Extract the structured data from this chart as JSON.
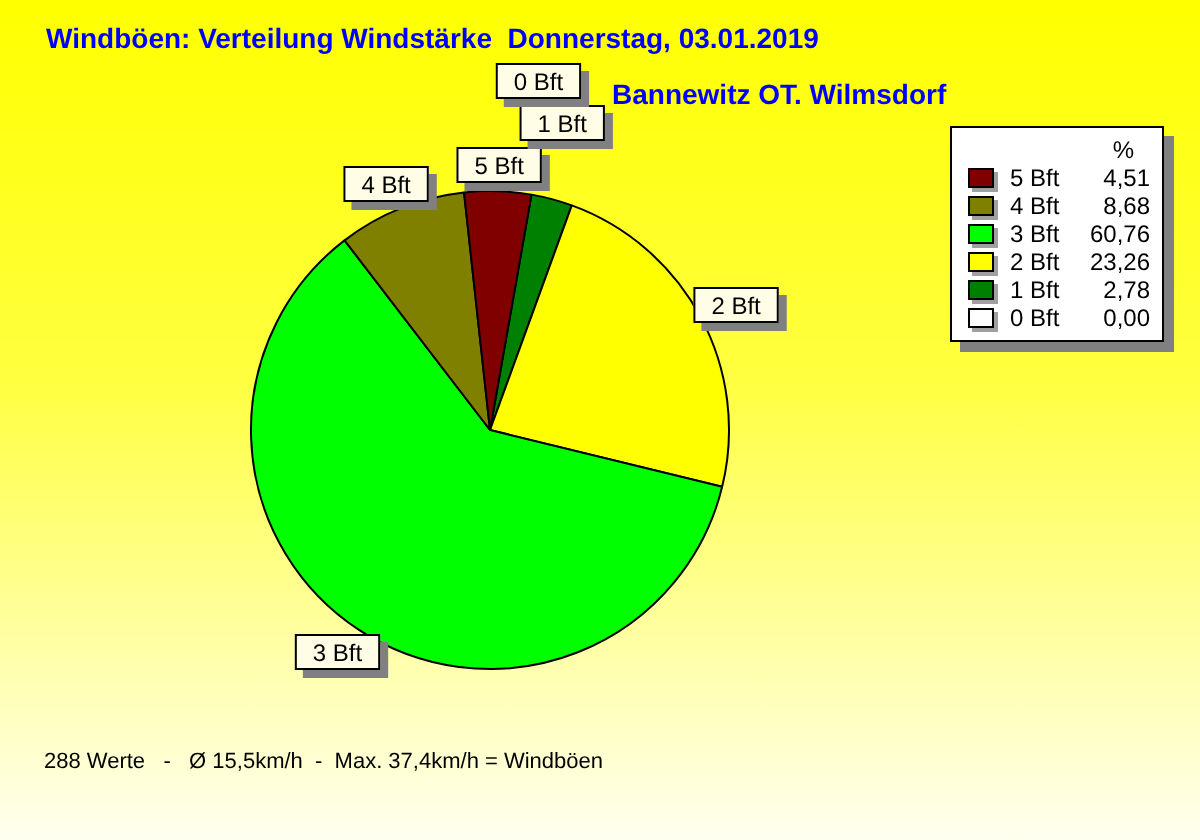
{
  "chart_data": {
    "type": "pie",
    "title": "Windböen: Verteilung Windstärke  Donnerstag, 03.01.2019",
    "subtitle": "Bannewitz OT. Wilmsdorf",
    "categories": [
      "5 Bft",
      "4 Bft",
      "3 Bft",
      "2 Bft",
      "1 Bft",
      "0 Bft"
    ],
    "values": [
      4.51,
      8.68,
      60.76,
      23.26,
      2.78,
      0
    ],
    "value_labels": [
      "4,51",
      "8,68",
      "60,76",
      "23,26",
      "2,78",
      "0,00"
    ],
    "colors": [
      "#800000",
      "#808000",
      "#00ff00",
      "#ffff00",
      "#008000",
      "#ffffff"
    ],
    "legend": "top right",
    "legend_title": "%",
    "annotations": [
      "288 Werte   -   Ø 15,5km/h  -  Max. 37,4km/h = Windböen"
    ]
  }
}
